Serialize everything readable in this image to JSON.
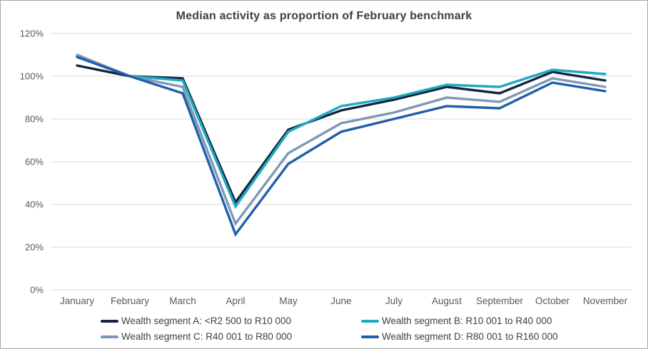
{
  "chart_data": {
    "type": "line",
    "title": "Median activity as proportion of February benchmark",
    "categories": [
      "January",
      "February",
      "March",
      "April",
      "May",
      "June",
      "July",
      "August",
      "September",
      "October",
      "November"
    ],
    "series": [
      {
        "name": "Wealth segment A: <R2 500 to R10 000",
        "color": "#16243e",
        "values": [
          105,
          100,
          99,
          41,
          75,
          84,
          89,
          95,
          92,
          102,
          98
        ]
      },
      {
        "name": "Wealth segment B: R10 001 to R40 000",
        "color": "#1faac3",
        "values": [
          109,
          100,
          98,
          39,
          74,
          86,
          90,
          96,
          95,
          103,
          101
        ]
      },
      {
        "name": "Wealth segment C: R40 001 to R80 000",
        "color": "#7e99b5",
        "values": [
          110,
          100,
          95,
          31,
          64,
          78,
          83,
          90,
          88,
          99,
          95
        ]
      },
      {
        "name": "Wealth segment D: R80 001 to R160 000",
        "color": "#1f5fa9",
        "values": [
          109,
          100,
          92,
          26,
          59,
          74,
          80,
          86,
          85,
          97,
          93
        ]
      }
    ],
    "xlabel": "",
    "ylabel": "",
    "ylim": [
      0,
      120
    ],
    "ytick_step": 20,
    "ytick_suffix": "%",
    "grid": true,
    "legend_position": "bottom"
  },
  "colors": {
    "title": "#404040",
    "axis_label": "#595959",
    "gridline": "#d9d9d9",
    "border": "#a6a6a6"
  }
}
